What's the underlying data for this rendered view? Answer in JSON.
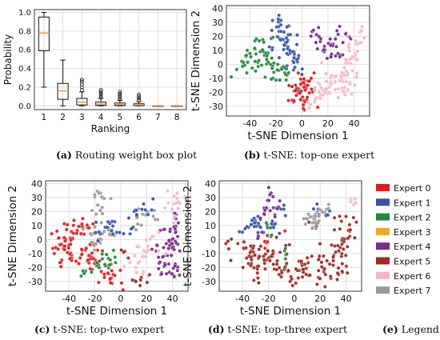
{
  "colors": {
    "expert_0": "#e31a1c",
    "expert_1": "#3653a8",
    "expert_2": "#1f8a3d",
    "expert_3": "#f5a623",
    "expert_4": "#7b2a8f",
    "expert_5": "#9e2a24",
    "expert_6": "#f4b6c6",
    "expert_7": "#9b9b9b",
    "grid": "#d8d8d8",
    "median": "#f08a24"
  },
  "captions": {
    "a_label": "(a)",
    "a_text": " Routing weight box plot",
    "b_label": "(b)",
    "b_text": " t-SNE: top-one expert",
    "c_label": "(c)",
    "c_text": " t-SNE: top-two expert",
    "d_label": "(d)",
    "d_text": " t-SNE: top-three expert",
    "e_label": "(e)",
    "e_text": " Legend"
  },
  "legend": [
    {
      "label": "Expert 0",
      "color": "#e31a1c"
    },
    {
      "label": "Expert 1",
      "color": "#3653a8"
    },
    {
      "label": "Expert 2",
      "color": "#1f8a3d"
    },
    {
      "label": "Expert 3",
      "color": "#f5a623"
    },
    {
      "label": "Expert 4",
      "color": "#7b2a8f"
    },
    {
      "label": "Expert 5",
      "color": "#9e2a24"
    },
    {
      "label": "Expert 6",
      "color": "#f4b6c6"
    },
    {
      "label": "Expert 7",
      "color": "#9b9b9b"
    }
  ],
  "chart_data": [
    {
      "id": "a",
      "type": "box",
      "xlabel": "Ranking",
      "ylabel": "Probability",
      "categories": [
        "1",
        "2",
        "3",
        "4",
        "5",
        "6",
        "7",
        "8"
      ],
      "ylim": [
        -0.04,
        1.03
      ],
      "yticks": [
        "0.0",
        "0.2",
        "0.4",
        "0.6",
        "0.8",
        "1.0"
      ],
      "grid": true,
      "boxes": [
        {
          "min": 0.2,
          "q1": 0.59,
          "median": 0.78,
          "q3": 0.95,
          "max": 1.0,
          "outliers": []
        },
        {
          "min": 0.0,
          "q1": 0.07,
          "median": 0.16,
          "q3": 0.24,
          "max": 0.49,
          "outliers": []
        },
        {
          "min": 0.0,
          "q1": 0.01,
          "median": 0.04,
          "q3": 0.08,
          "max": 0.15,
          "outliers": [
            0.17,
            0.2,
            0.23,
            0.26,
            0.28
          ]
        },
        {
          "min": 0.0,
          "q1": 0.005,
          "median": 0.02,
          "q3": 0.04,
          "max": 0.08,
          "outliers": [
            0.09,
            0.11,
            0.13,
            0.15,
            0.17
          ]
        },
        {
          "min": 0.0,
          "q1": 0.003,
          "median": 0.012,
          "q3": 0.03,
          "max": 0.06,
          "outliers": [
            0.07,
            0.09,
            0.11,
            0.13,
            0.15
          ]
        },
        {
          "min": 0.0,
          "q1": 0.002,
          "median": 0.008,
          "q3": 0.022,
          "max": 0.045,
          "outliers": [
            0.06,
            0.08,
            0.1,
            0.12
          ]
        },
        {
          "min": 0.0,
          "q1": 0.0,
          "median": 0.0,
          "q3": 0.0,
          "max": 0.0,
          "outliers": []
        },
        {
          "min": 0.0,
          "q1": 0.0,
          "median": 0.0,
          "q3": 0.0,
          "max": 0.0,
          "outliers": []
        }
      ]
    },
    {
      "id": "b",
      "type": "scatter",
      "xlabel": "t-SNE Dimension 1",
      "ylabel": "t-SNE Dimension 2",
      "xlim": [
        -58,
        52
      ],
      "ylim": [
        -37,
        42
      ],
      "xticks": [
        -40,
        -20,
        0,
        20,
        40
      ],
      "yticks": [
        -30,
        -20,
        -10,
        0,
        10,
        20,
        30,
        40
      ],
      "grid": true,
      "seed": 11,
      "clusters": [
        {
          "color": "#3653a8",
          "pts": [
            [
              -18,
              34
            ],
            [
              -13,
              30
            ],
            [
              -16,
              22
            ],
            [
              -10,
              18
            ],
            [
              -20,
              15
            ],
            [
              -8,
              10
            ],
            [
              -14,
              6
            ],
            [
              -6,
              3
            ],
            [
              -24,
              25
            ],
            [
              -4,
              -2
            ]
          ],
          "n": 60,
          "spread": 3.2
        },
        {
          "color": "#1f8a3d",
          "pts": [
            [
              -52,
              -2
            ],
            [
              -44,
              1
            ],
            [
              -36,
              -4
            ],
            [
              -40,
              10
            ],
            [
              -30,
              18
            ],
            [
              -28,
              6
            ],
            [
              -24,
              -8
            ],
            [
              -18,
              -4
            ],
            [
              -16,
              -12
            ],
            [
              -10,
              -6
            ]
          ],
          "n": 66,
          "spread": 2.8
        },
        {
          "color": "#e31a1c",
          "pts": [
            [
              -8,
              -18
            ],
            [
              -4,
              -24
            ],
            [
              2,
              -28
            ],
            [
              -2,
              -14
            ],
            [
              4,
              -20
            ],
            [
              8,
              -33
            ],
            [
              -6,
              -30
            ],
            [
              0,
              -8
            ],
            [
              6,
              -10
            ]
          ],
          "n": 48,
          "spread": 2.6
        },
        {
          "color": "#7b2a8f",
          "pts": [
            [
              8,
              20
            ],
            [
              12,
              24
            ],
            [
              18,
              10
            ],
            [
              22,
              2
            ],
            [
              30,
              26
            ],
            [
              36,
              20
            ],
            [
              24,
              14
            ],
            [
              14,
              18
            ],
            [
              28,
              5
            ]
          ],
          "n": 42,
          "spread": 2.2
        },
        {
          "color": "#f4b6c6",
          "pts": [
            [
              44,
              26
            ],
            [
              42,
              18
            ],
            [
              40,
              8
            ],
            [
              36,
              0
            ],
            [
              30,
              -8
            ],
            [
              20,
              -12
            ],
            [
              10,
              -16
            ],
            [
              16,
              -24
            ],
            [
              6,
              -28
            ],
            [
              36,
              -16
            ],
            [
              28,
              -20
            ],
            [
              46,
              12
            ],
            [
              38,
              -8
            ]
          ],
          "n": 96,
          "spread": 3.2
        },
        {
          "color": "#9e2a24",
          "pts": [
            [
              -4,
              -16
            ],
            [
              -2,
              -20
            ]
          ],
          "n": 6,
          "spread": 1.5
        }
      ]
    },
    {
      "id": "c",
      "type": "scatter",
      "xlabel": "t-SNE Dimension 1",
      "ylabel": "t-SNE Dimension 2",
      "xlim": [
        -58,
        52
      ],
      "ylim": [
        -37,
        42
      ],
      "xticks": [
        -40,
        -20,
        0,
        20,
        40
      ],
      "yticks": [
        -30,
        -20,
        -10,
        0,
        10,
        20,
        30,
        40
      ],
      "grid": true,
      "seed": 23,
      "clusters": [
        {
          "color": "#e31a1c",
          "pts": [
            [
              -52,
              -2
            ],
            [
              -46,
              -8
            ],
            [
              -40,
              -14
            ],
            [
              -38,
              8
            ],
            [
              -34,
              -4
            ],
            [
              -30,
              -18
            ],
            [
              -24,
              -14
            ],
            [
              -20,
              -6
            ],
            [
              -26,
              10
            ],
            [
              -44,
              6
            ],
            [
              -4,
              -24
            ],
            [
              0,
              -30
            ],
            [
              -8,
              -30
            ]
          ],
          "n": 110,
          "spread": 3.2
        },
        {
          "color": "#9b9b9b",
          "pts": [
            [
              -18,
              34
            ],
            [
              -14,
              30
            ],
            [
              -20,
              22
            ],
            [
              -14,
              16
            ],
            [
              -24,
              8
            ],
            [
              -12,
              2
            ],
            [
              20,
              18
            ],
            [
              26,
              14
            ],
            [
              -22,
              -8
            ]
          ],
          "n": 52,
          "spread": 2.6
        },
        {
          "color": "#3653a8",
          "pts": [
            [
              -10,
              10
            ],
            [
              -6,
              6
            ],
            [
              -16,
              4
            ],
            [
              -30,
              4
            ],
            [
              10,
              16
            ],
            [
              16,
              22
            ],
            [
              22,
              24
            ],
            [
              8,
              8
            ]
          ],
          "n": 34,
          "spread": 2.6
        },
        {
          "color": "#1f8a3d",
          "pts": [
            [
              -18,
              -14
            ],
            [
              -14,
              -18
            ],
            [
              -10,
              -20
            ],
            [
              -4,
              -10
            ],
            [
              -30,
              -26
            ]
          ],
          "n": 24,
          "spread": 2.2
        },
        {
          "color": "#7b2a8f",
          "pts": [
            [
              44,
              18
            ],
            [
              40,
              8
            ],
            [
              42,
              -2
            ],
            [
              36,
              -10
            ],
            [
              30,
              -18
            ],
            [
              40,
              -20
            ],
            [
              34,
              -28
            ],
            [
              44,
              -24
            ],
            [
              26,
              -8
            ]
          ],
          "n": 64,
          "spread": 2.6
        },
        {
          "color": "#f4b6c6",
          "pts": [
            [
              46,
              26
            ],
            [
              44,
              32
            ],
            [
              40,
              30
            ],
            [
              22,
              -4
            ],
            [
              28,
              -12
            ],
            [
              12,
              -14
            ],
            [
              6,
              -20
            ],
            [
              16,
              -24
            ]
          ],
          "n": 44,
          "spread": 2.6
        },
        {
          "color": "#9e2a24",
          "pts": [
            [
              2,
              -6
            ],
            [
              10,
              -30
            ],
            [
              20,
              -28
            ]
          ],
          "n": 12,
          "spread": 2
        }
      ]
    },
    {
      "id": "d",
      "type": "scatter",
      "xlabel": "t-SNE Dimension 1",
      "ylabel": "t-SNE Dimension 2",
      "xlim": [
        -58,
        52
      ],
      "ylim": [
        -37,
        42
      ],
      "xticks": [
        -40,
        -20,
        0,
        20,
        40
      ],
      "yticks": [
        -30,
        -20,
        -10,
        0,
        10,
        20,
        30,
        40
      ],
      "grid": true,
      "seed": 37,
      "clusters": [
        {
          "color": "#9e2a24",
          "pts": [
            [
              -52,
              -2
            ],
            [
              -46,
              -8
            ],
            [
              -40,
              -14
            ],
            [
              -34,
              -4
            ],
            [
              -30,
              -18
            ],
            [
              -24,
              -14
            ],
            [
              -20,
              -6
            ],
            [
              -10,
              -20
            ],
            [
              -4,
              -26
            ],
            [
              0,
              -30
            ],
            [
              8,
              -22
            ],
            [
              16,
              -18
            ],
            [
              24,
              -24
            ],
            [
              30,
              -14
            ],
            [
              36,
              -6
            ],
            [
              40,
              4
            ],
            [
              44,
              12
            ],
            [
              46,
              20
            ],
            [
              38,
              -22
            ],
            [
              20,
              -30
            ],
            [
              -36,
              -24
            ]
          ],
          "n": 170,
          "spread": 3.2
        },
        {
          "color": "#3653a8",
          "pts": [
            [
              -40,
              8
            ],
            [
              -34,
              14
            ],
            [
              -30,
              4
            ],
            [
              -20,
              4
            ],
            [
              -14,
              10
            ],
            [
              -10,
              18
            ],
            [
              -8,
              26
            ],
            [
              22,
              22
            ],
            [
              26,
              18
            ]
          ],
          "n": 44,
          "spread": 2.6
        },
        {
          "color": "#7b2a8f",
          "pts": [
            [
              -18,
              34
            ],
            [
              -14,
              30
            ],
            [
              -12,
              22
            ],
            [
              -24,
              16
            ],
            [
              -28,
              -2
            ]
          ],
          "n": 24,
          "spread": 2.2
        },
        {
          "color": "#9b9b9b",
          "pts": [
            [
              8,
              14
            ],
            [
              14,
              16
            ],
            [
              20,
              20
            ],
            [
              26,
              24
            ],
            [
              16,
              8
            ],
            [
              12,
              22
            ]
          ],
          "n": 30,
          "spread": 2.4
        },
        {
          "color": "#1f8a3d",
          "pts": [
            [
              -20,
              10
            ],
            [
              -8,
              -16
            ],
            [
              -6,
              -10
            ]
          ],
          "n": 10,
          "spread": 1.8
        },
        {
          "color": "#e31a1c",
          "pts": [
            [
              -24,
              0
            ],
            [
              -14,
              -10
            ],
            [
              -6,
              6
            ]
          ],
          "n": 8,
          "spread": 1.6
        },
        {
          "color": "#f4b6c6",
          "pts": [
            [
              46,
              30
            ],
            [
              44,
              26
            ]
          ],
          "n": 8,
          "spread": 1.8
        }
      ]
    }
  ]
}
